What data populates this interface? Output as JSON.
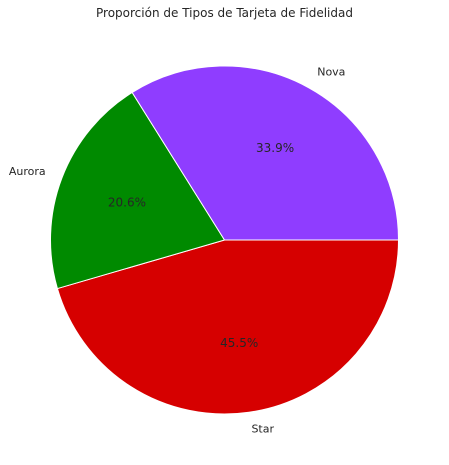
{
  "chart_data": {
    "type": "pie",
    "title": "Proporción de Tipos de Tarjeta de Fidelidad",
    "categories": [
      "Star",
      "Aurora",
      "Nova"
    ],
    "values": [
      45.5,
      20.6,
      33.9
    ],
    "percent_labels": [
      "45.5%",
      "20.6%",
      "33.9%"
    ],
    "colors": [
      "#d60000",
      "#008a00",
      "#8f3dff"
    ],
    "slice_edge_color": "#ffffff",
    "start_angle_deg": 0,
    "direction": "clockwise",
    "legend": "none"
  }
}
